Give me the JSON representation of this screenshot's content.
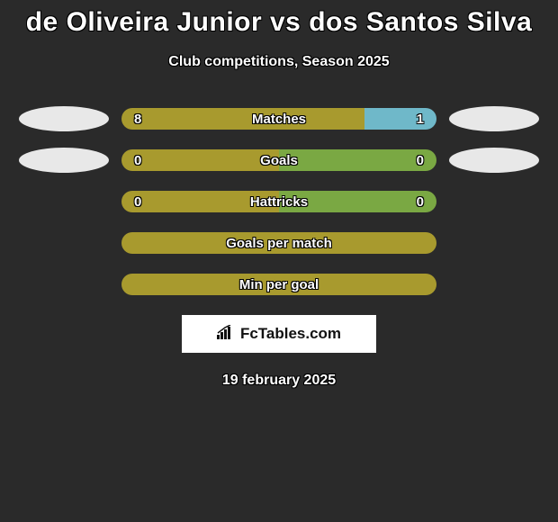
{
  "title": "de Oliveira Junior vs dos Santos Silva",
  "subtitle": "Club competitions, Season 2025",
  "date": "19 february 2025",
  "colors": {
    "primary": "#a89a2e",
    "secondary": "#6fb8c9",
    "tertiary": "#7aa843",
    "avatar": "#e8e8e8",
    "background": "#2a2a2a"
  },
  "logo": {
    "text": "FcTables.com"
  },
  "rows": [
    {
      "label": "Matches",
      "left": "8",
      "right": "1",
      "leftColor": "#a89a2e",
      "rightColor": "#6fb8c9",
      "leftPct": 77,
      "rightPct": 23,
      "showAvatars": true
    },
    {
      "label": "Goals",
      "left": "0",
      "right": "0",
      "leftColor": "#a89a2e",
      "rightColor": "#7aa843",
      "leftPct": 50,
      "rightPct": 50,
      "showAvatars": true
    },
    {
      "label": "Hattricks",
      "left": "0",
      "right": "0",
      "leftColor": "#a89a2e",
      "rightColor": "#7aa843",
      "leftPct": 50,
      "rightPct": 50,
      "showAvatars": false
    },
    {
      "label": "Goals per match",
      "left": "",
      "right": "",
      "leftColor": "#a89a2e",
      "rightColor": "#a89a2e",
      "leftPct": 100,
      "rightPct": 0,
      "showAvatars": false
    },
    {
      "label": "Min per goal",
      "left": "",
      "right": "",
      "leftColor": "#a89a2e",
      "rightColor": "#a89a2e",
      "leftPct": 100,
      "rightPct": 0,
      "showAvatars": false
    }
  ]
}
